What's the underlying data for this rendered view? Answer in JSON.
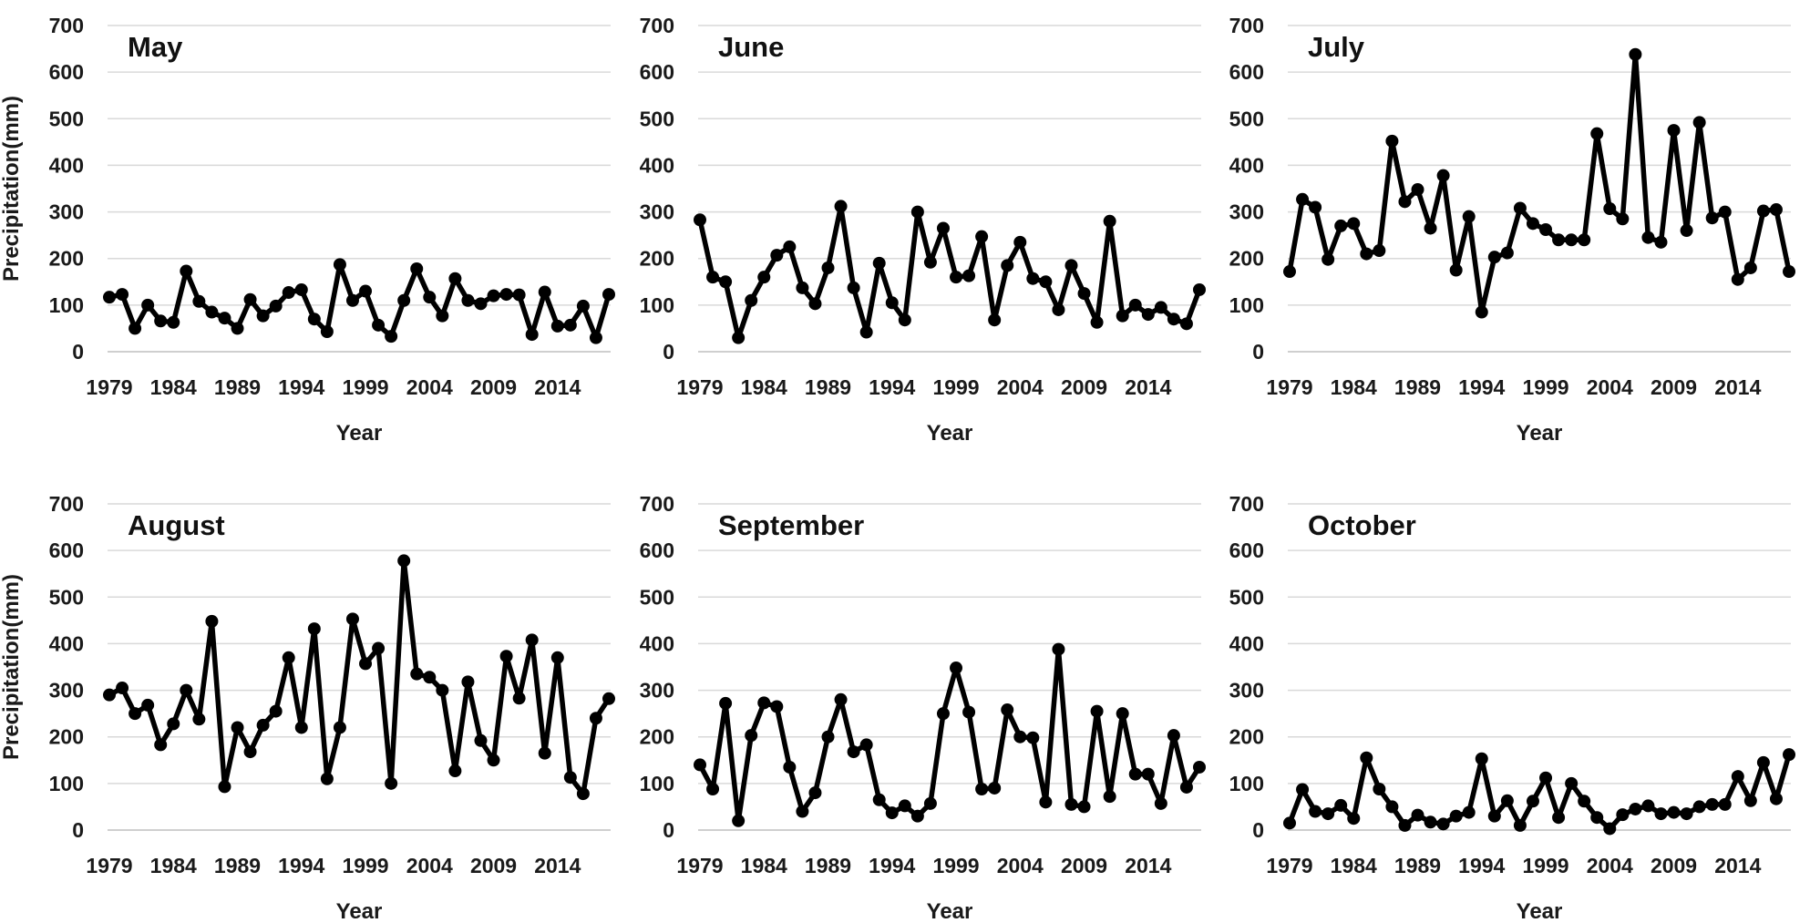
{
  "figure": {
    "ylabel": "Precipitation(mm)",
    "xlabel": "Year"
  },
  "chart_data": [
    {
      "type": "line",
      "title": "May",
      "xlabel": "Year",
      "ylabel": "Precipitation(mm)",
      "ylim": [
        0,
        700
      ],
      "yticks": [
        0,
        100,
        200,
        300,
        400,
        500,
        600,
        700
      ],
      "xticks": [
        1979,
        1984,
        1989,
        1994,
        1999,
        2004,
        2009,
        2014
      ],
      "grid": "horizontal",
      "x": [
        1979,
        1980,
        1981,
        1982,
        1983,
        1984,
        1985,
        1986,
        1987,
        1988,
        1989,
        1990,
        1991,
        1992,
        1993,
        1994,
        1995,
        1996,
        1997,
        1998,
        1999,
        2000,
        2001,
        2002,
        2003,
        2004,
        2005,
        2006,
        2007,
        2008,
        2009,
        2010,
        2011,
        2012,
        2013,
        2014,
        2015,
        2016,
        2017,
        2018
      ],
      "values": [
        117,
        123,
        50,
        100,
        66,
        63,
        173,
        108,
        85,
        72,
        50,
        112,
        77,
        98,
        127,
        133,
        70,
        43,
        187,
        110,
        130,
        57,
        33,
        110,
        178,
        117,
        77,
        157,
        110,
        103,
        120,
        123,
        122,
        37,
        128,
        55,
        57,
        98,
        30,
        123
      ]
    },
    {
      "type": "line",
      "title": "June",
      "xlabel": "Year",
      "ylabel": "",
      "ylim": [
        0,
        700
      ],
      "yticks": [
        0,
        100,
        200,
        300,
        400,
        500,
        600,
        700
      ],
      "xticks": [
        1979,
        1984,
        1989,
        1994,
        1999,
        2004,
        2009,
        2014
      ],
      "grid": "horizontal",
      "x": [
        1979,
        1980,
        1981,
        1982,
        1983,
        1984,
        1985,
        1986,
        1987,
        1988,
        1989,
        1990,
        1991,
        1992,
        1993,
        1994,
        1995,
        1996,
        1997,
        1998,
        1999,
        2000,
        2001,
        2002,
        2003,
        2004,
        2005,
        2006,
        2007,
        2008,
        2009,
        2010,
        2011,
        2012,
        2013,
        2014,
        2015,
        2016,
        2017,
        2018
      ],
      "values": [
        283,
        160,
        150,
        30,
        110,
        160,
        207,
        225,
        137,
        103,
        180,
        312,
        137,
        42,
        190,
        105,
        68,
        300,
        192,
        265,
        160,
        163,
        247,
        68,
        185,
        235,
        157,
        150,
        90,
        185,
        125,
        63,
        280,
        77,
        100,
        80,
        95,
        70,
        60,
        133
      ]
    },
    {
      "type": "line",
      "title": "July",
      "xlabel": "Year",
      "ylabel": "",
      "ylim": [
        0,
        700
      ],
      "yticks": [
        0,
        100,
        200,
        300,
        400,
        500,
        600,
        700
      ],
      "xticks": [
        1979,
        1984,
        1989,
        1994,
        1999,
        2004,
        2009,
        2014
      ],
      "grid": "horizontal",
      "x": [
        1979,
        1980,
        1981,
        1982,
        1983,
        1984,
        1985,
        1986,
        1987,
        1988,
        1989,
        1990,
        1991,
        1992,
        1993,
        1994,
        1995,
        1996,
        1997,
        1998,
        1999,
        2000,
        2001,
        2002,
        2003,
        2004,
        2005,
        2006,
        2007,
        2008,
        2009,
        2010,
        2011,
        2012,
        2013,
        2014,
        2015,
        2016,
        2017,
        2018
      ],
      "values": [
        172,
        327,
        310,
        198,
        270,
        275,
        210,
        217,
        452,
        322,
        348,
        265,
        378,
        175,
        290,
        85,
        203,
        212,
        308,
        275,
        262,
        240,
        240,
        240,
        468,
        307,
        285,
        638,
        245,
        235,
        475,
        260,
        492,
        287,
        300,
        155,
        180,
        302,
        305,
        172
      ]
    },
    {
      "type": "line",
      "title": "August",
      "xlabel": "Year",
      "ylabel": "Precipitation(mm)",
      "ylim": [
        0,
        700
      ],
      "yticks": [
        0,
        100,
        200,
        300,
        400,
        500,
        600,
        700
      ],
      "xticks": [
        1979,
        1984,
        1989,
        1994,
        1999,
        2004,
        2009,
        2014
      ],
      "grid": "horizontal",
      "x": [
        1979,
        1980,
        1981,
        1982,
        1983,
        1984,
        1985,
        1986,
        1987,
        1988,
        1989,
        1990,
        1991,
        1992,
        1993,
        1994,
        1995,
        1996,
        1997,
        1998,
        1999,
        2000,
        2001,
        2002,
        2003,
        2004,
        2005,
        2006,
        2007,
        2008,
        2009,
        2010,
        2011,
        2012,
        2013,
        2014,
        2015,
        2016,
        2017,
        2018
      ],
      "values": [
        290,
        305,
        250,
        268,
        183,
        228,
        300,
        238,
        448,
        93,
        220,
        168,
        225,
        255,
        370,
        220,
        432,
        110,
        220,
        453,
        357,
        390,
        100,
        578,
        335,
        328,
        300,
        127,
        318,
        192,
        150,
        373,
        283,
        408,
        165,
        370,
        113,
        78,
        240,
        282
      ]
    },
    {
      "type": "line",
      "title": "September",
      "xlabel": "Year",
      "ylabel": "",
      "ylim": [
        0,
        700
      ],
      "yticks": [
        0,
        100,
        200,
        300,
        400,
        500,
        600,
        700
      ],
      "xticks": [
        1979,
        1984,
        1989,
        1994,
        1999,
        2004,
        2009,
        2014
      ],
      "grid": "horizontal",
      "x": [
        1979,
        1980,
        1981,
        1982,
        1983,
        1984,
        1985,
        1986,
        1987,
        1988,
        1989,
        1990,
        1991,
        1992,
        1993,
        1994,
        1995,
        1996,
        1997,
        1998,
        1999,
        2000,
        2001,
        2002,
        2003,
        2004,
        2005,
        2006,
        2007,
        2008,
        2009,
        2010,
        2011,
        2012,
        2013,
        2014,
        2015,
        2016,
        2017,
        2018
      ],
      "values": [
        140,
        88,
        272,
        20,
        203,
        273,
        265,
        135,
        40,
        80,
        200,
        280,
        168,
        183,
        65,
        37,
        52,
        30,
        57,
        250,
        348,
        253,
        88,
        90,
        258,
        200,
        198,
        60,
        388,
        55,
        50,
        255,
        72,
        250,
        120,
        120,
        57,
        203,
        92,
        135
      ]
    },
    {
      "type": "line",
      "title": "October",
      "xlabel": "Year",
      "ylabel": "",
      "ylim": [
        0,
        700
      ],
      "yticks": [
        0,
        100,
        200,
        300,
        400,
        500,
        600,
        700
      ],
      "xticks": [
        1979,
        1984,
        1989,
        1994,
        1999,
        2004,
        2009,
        2014
      ],
      "grid": "horizontal",
      "x": [
        1979,
        1980,
        1981,
        1982,
        1983,
        1984,
        1985,
        1986,
        1987,
        1988,
        1989,
        1990,
        1991,
        1992,
        1993,
        1994,
        1995,
        1996,
        1997,
        1998,
        1999,
        2000,
        2001,
        2002,
        2003,
        2004,
        2005,
        2006,
        2007,
        2008,
        2009,
        2010,
        2011,
        2012,
        2013,
        2014,
        2015,
        2016,
        2017,
        2018
      ],
      "values": [
        15,
        87,
        40,
        35,
        53,
        25,
        155,
        88,
        50,
        10,
        32,
        17,
        13,
        30,
        38,
        153,
        30,
        63,
        10,
        62,
        112,
        27,
        100,
        62,
        27,
        3,
        33,
        45,
        52,
        35,
        38,
        35,
        50,
        55,
        55,
        115,
        63,
        145,
        67,
        162
      ]
    }
  ]
}
